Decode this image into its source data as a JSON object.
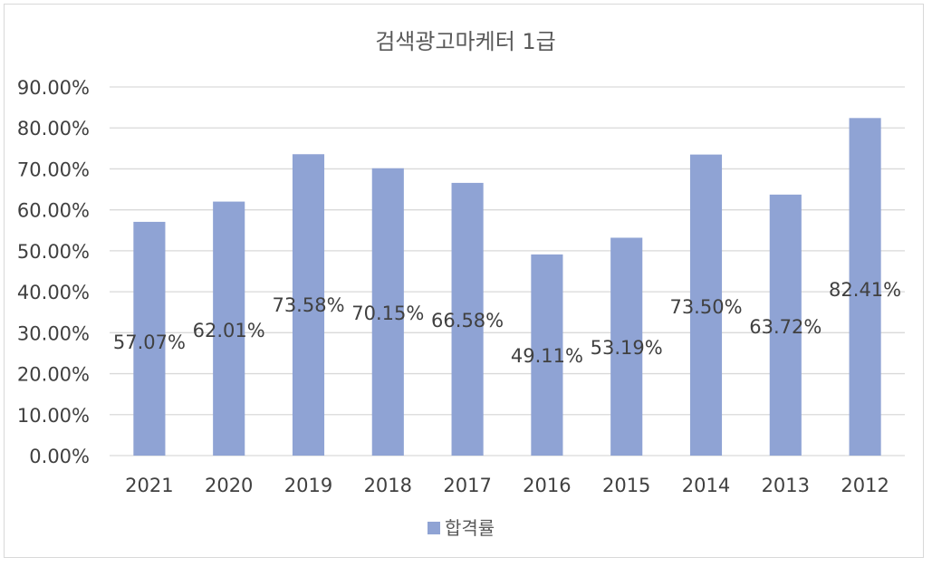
{
  "chart_data": {
    "type": "bar",
    "title": "검색광고마케터 1급",
    "categories": [
      "2021",
      "2020",
      "2019",
      "2018",
      "2017",
      "2016",
      "2015",
      "2014",
      "2013",
      "2012"
    ],
    "series": [
      {
        "name": "합격률",
        "values": [
          57.07,
          62.01,
          73.58,
          70.15,
          66.58,
          49.11,
          53.19,
          73.5,
          63.72,
          82.41
        ],
        "labels": [
          "57.07%",
          "62.01%",
          "73.58%",
          "70.15%",
          "66.58%",
          "49.11%",
          "53.19%",
          "73.50%",
          "63.72%",
          "82.41%"
        ],
        "color": "#8fa3d4"
      }
    ],
    "y_ticks": [
      "0.00%",
      "10.00%",
      "20.00%",
      "30.00%",
      "40.00%",
      "50.00%",
      "60.00%",
      "70.00%",
      "80.00%",
      "90.00%"
    ],
    "ylim": [
      0,
      90
    ],
    "xlabel": "",
    "ylabel": "",
    "grid": true,
    "legend_position": "bottom",
    "gridline_color": "#d9d9d9"
  }
}
